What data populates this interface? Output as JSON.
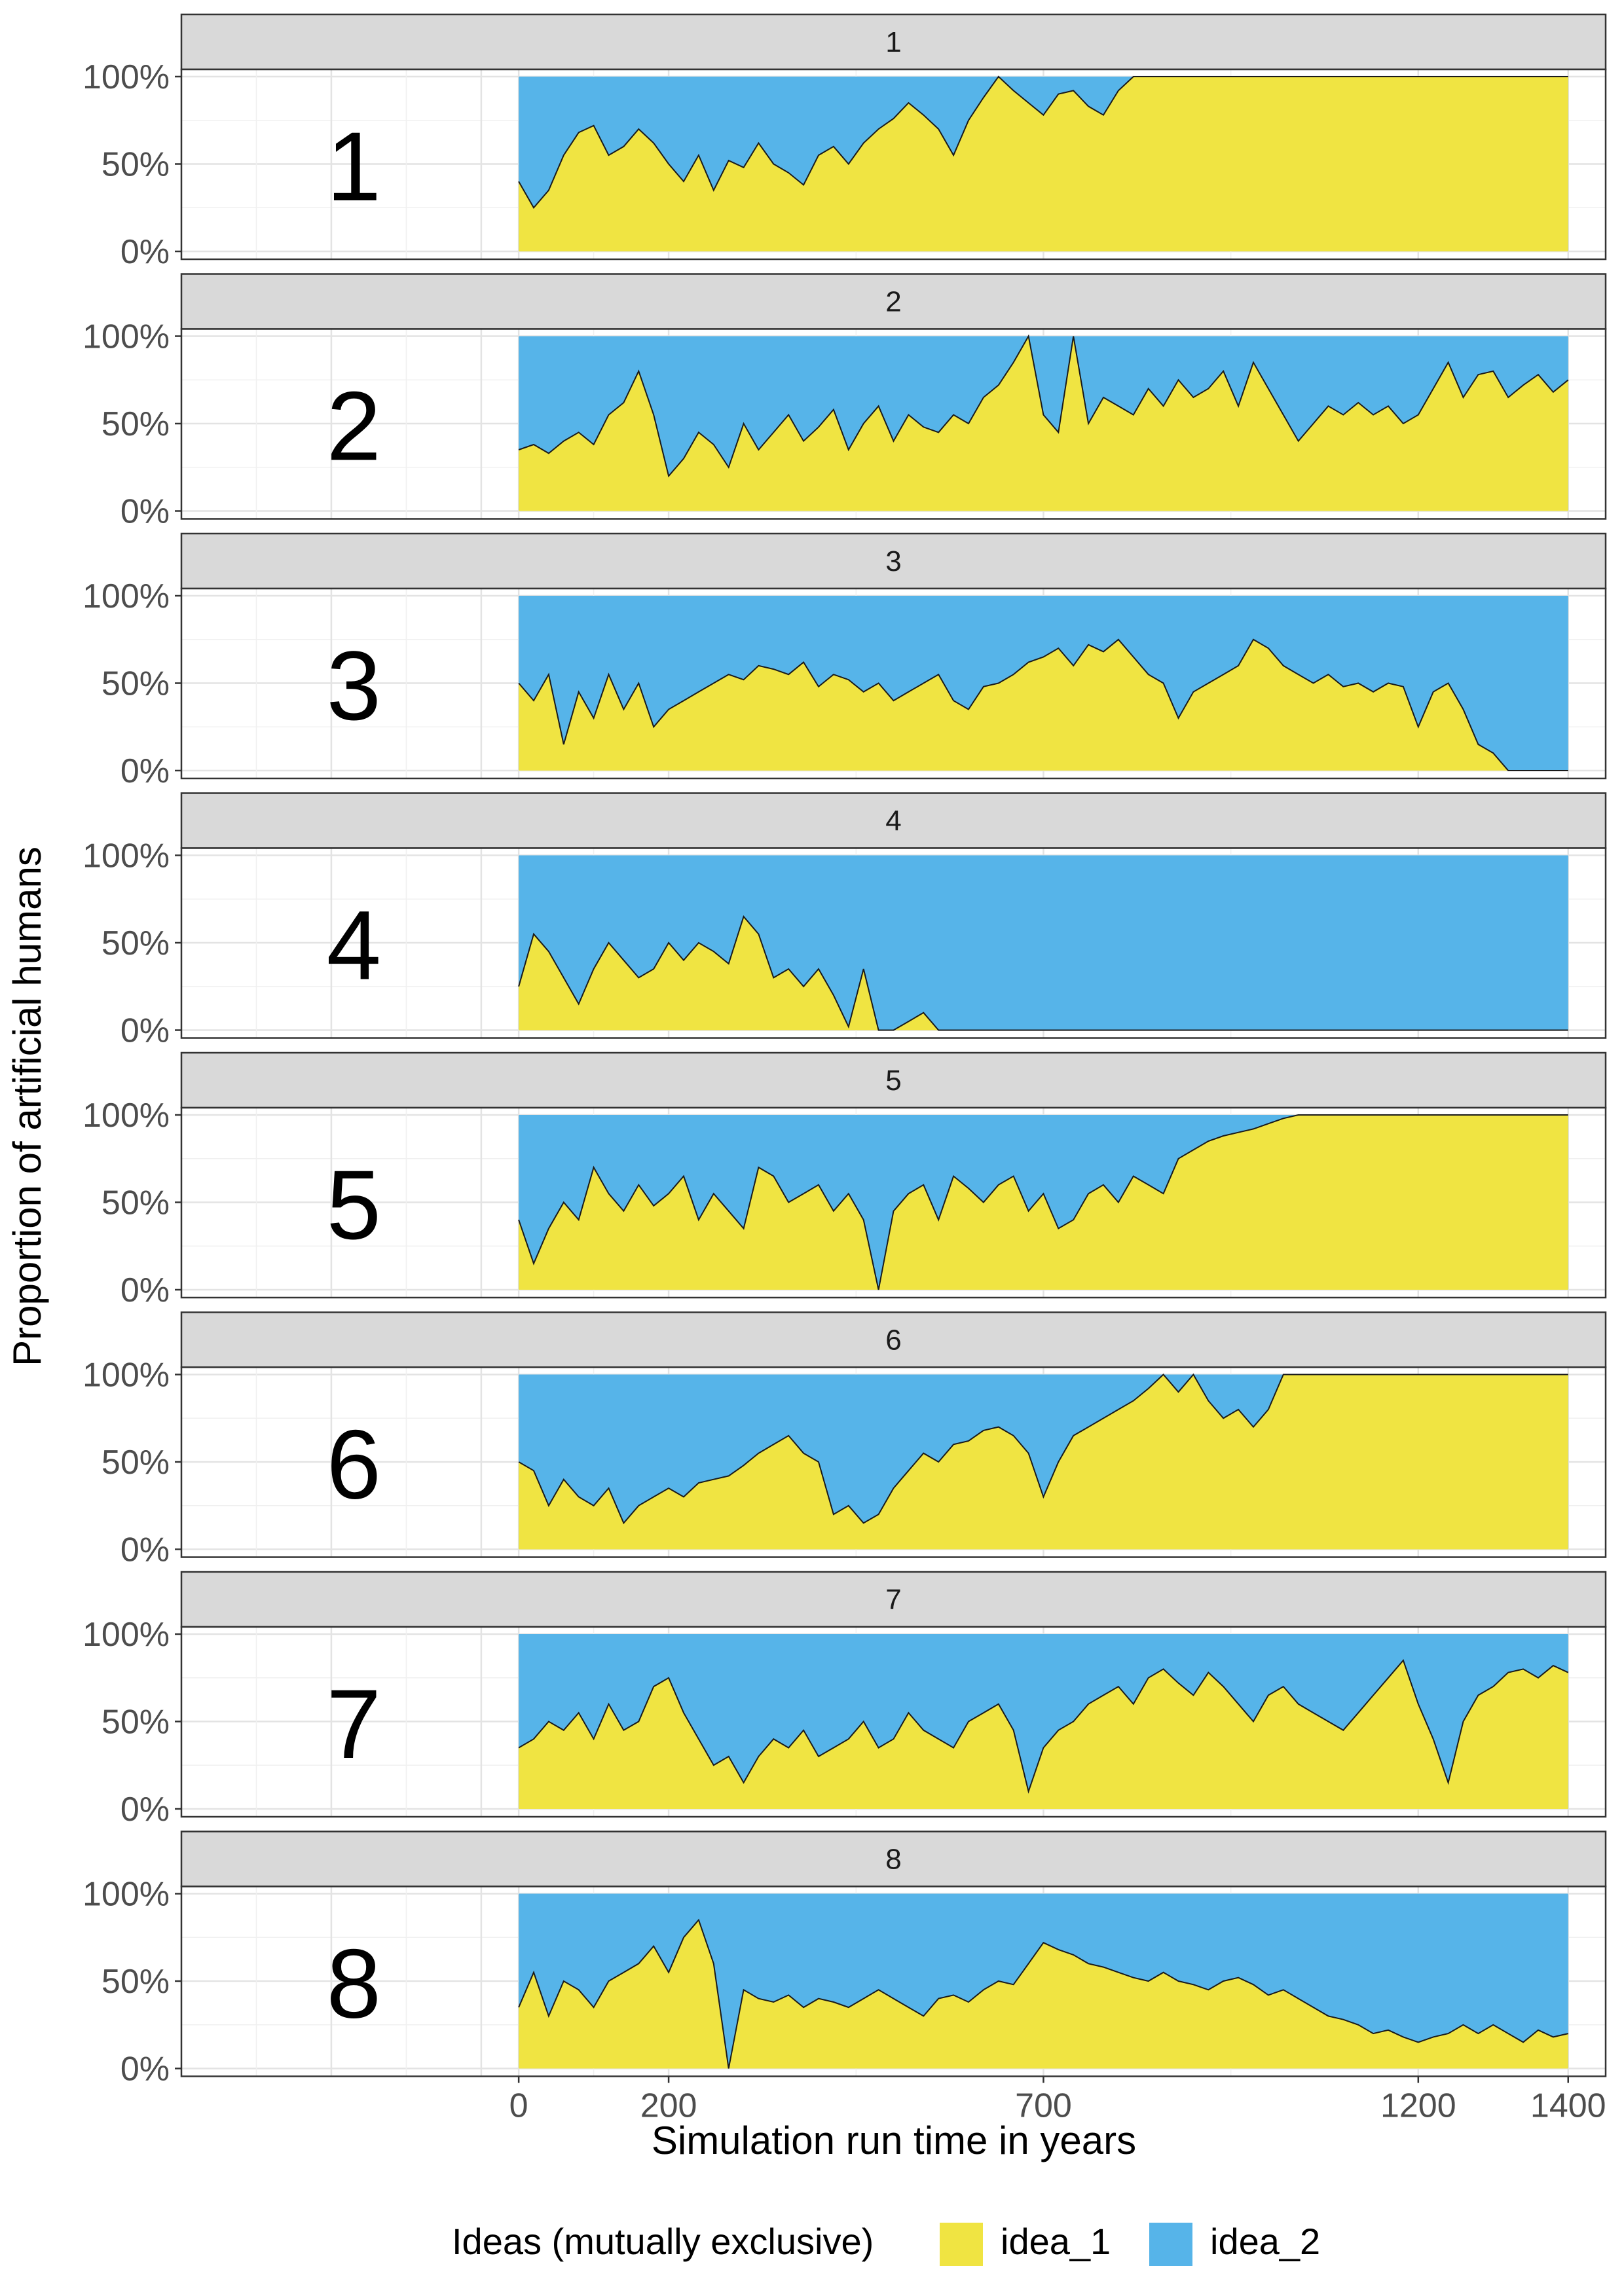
{
  "chart_data": {
    "type": "area",
    "stacked": true,
    "facet_by": "run",
    "xlabel": "Simulation run time in years",
    "ylabel": "Proportion of artificial humans",
    "xlim": [
      -450,
      1450
    ],
    "ylim": [
      0,
      1
    ],
    "x_ticks": [
      0,
      200,
      700,
      1200,
      1400
    ],
    "y_ticks": [
      "0%",
      "50%",
      "100%"
    ],
    "grid": true,
    "legend": {
      "title": "Ideas (mutually exclusive)",
      "position": "bottom",
      "items": [
        {
          "label": "idea_1",
          "color": "#F0E442"
        },
        {
          "label": "idea_2",
          "color": "#56B4E9"
        }
      ]
    },
    "series_names": [
      "idea_1",
      "idea_2"
    ],
    "x": [
      0,
      20,
      40,
      60,
      80,
      100,
      120,
      140,
      160,
      180,
      200,
      220,
      240,
      260,
      280,
      300,
      320,
      340,
      360,
      380,
      400,
      420,
      440,
      460,
      480,
      500,
      520,
      540,
      560,
      580,
      600,
      620,
      640,
      660,
      680,
      700,
      720,
      740,
      760,
      780,
      800,
      820,
      840,
      860,
      880,
      900,
      920,
      940,
      960,
      980,
      1000,
      1020,
      1040,
      1060,
      1080,
      1100,
      1120,
      1140,
      1160,
      1180,
      1200,
      1220,
      1240,
      1260,
      1280,
      1300,
      1320,
      1340,
      1360,
      1380,
      1400
    ],
    "panels": [
      {
        "strip": "1",
        "label": "1",
        "idea_1": [
          0.4,
          0.25,
          0.35,
          0.55,
          0.68,
          0.72,
          0.55,
          0.6,
          0.7,
          0.62,
          0.5,
          0.4,
          0.55,
          0.35,
          0.52,
          0.48,
          0.62,
          0.5,
          0.45,
          0.38,
          0.55,
          0.6,
          0.5,
          0.62,
          0.7,
          0.76,
          0.85,
          0.78,
          0.7,
          0.55,
          0.75,
          0.88,
          1.0,
          0.92,
          0.85,
          0.78,
          0.9,
          0.92,
          0.83,
          0.78,
          0.92,
          1.0,
          1.0,
          1.0,
          1.0,
          1.0,
          1.0,
          1.0,
          1.0,
          1.0,
          1.0,
          1.0,
          1.0,
          1.0,
          1.0,
          1.0,
          1.0,
          1.0,
          1.0,
          1.0,
          1.0,
          1.0,
          1.0,
          1.0,
          1.0,
          1.0,
          1.0,
          1.0,
          1.0,
          1.0,
          1.0
        ]
      },
      {
        "strip": "2",
        "label": "2",
        "idea_1": [
          0.35,
          0.38,
          0.33,
          0.4,
          0.45,
          0.38,
          0.55,
          0.62,
          0.8,
          0.55,
          0.2,
          0.3,
          0.45,
          0.38,
          0.25,
          0.5,
          0.35,
          0.45,
          0.55,
          0.4,
          0.48,
          0.58,
          0.35,
          0.5,
          0.6,
          0.4,
          0.55,
          0.48,
          0.45,
          0.55,
          0.5,
          0.65,
          0.72,
          0.85,
          1.0,
          0.55,
          0.45,
          1.0,
          0.5,
          0.65,
          0.6,
          0.55,
          0.7,
          0.6,
          0.75,
          0.65,
          0.7,
          0.8,
          0.6,
          0.85,
          0.7,
          0.55,
          0.4,
          0.5,
          0.6,
          0.55,
          0.62,
          0.55,
          0.6,
          0.5,
          0.55,
          0.7,
          0.85,
          0.65,
          0.78,
          0.8,
          0.65,
          0.72,
          0.78,
          0.68,
          0.75
        ]
      },
      {
        "strip": "3",
        "label": "3",
        "idea_1": [
          0.5,
          0.4,
          0.55,
          0.15,
          0.45,
          0.3,
          0.55,
          0.35,
          0.5,
          0.25,
          0.35,
          0.4,
          0.45,
          0.5,
          0.55,
          0.52,
          0.6,
          0.58,
          0.55,
          0.62,
          0.48,
          0.55,
          0.52,
          0.45,
          0.5,
          0.4,
          0.45,
          0.5,
          0.55,
          0.4,
          0.35,
          0.48,
          0.5,
          0.55,
          0.62,
          0.65,
          0.7,
          0.6,
          0.72,
          0.68,
          0.75,
          0.65,
          0.55,
          0.5,
          0.3,
          0.45,
          0.5,
          0.55,
          0.6,
          0.75,
          0.7,
          0.6,
          0.55,
          0.5,
          0.55,
          0.48,
          0.5,
          0.45,
          0.5,
          0.48,
          0.25,
          0.45,
          0.5,
          0.35,
          0.15,
          0.1,
          0.0,
          0.0,
          0.0,
          0.0,
          0.0
        ]
      },
      {
        "strip": "4",
        "label": "4",
        "idea_1": [
          0.25,
          0.55,
          0.45,
          0.3,
          0.15,
          0.35,
          0.5,
          0.4,
          0.3,
          0.35,
          0.5,
          0.4,
          0.5,
          0.45,
          0.38,
          0.65,
          0.55,
          0.3,
          0.35,
          0.25,
          0.35,
          0.2,
          0.02,
          0.35,
          0.0,
          0.0,
          0.05,
          0.1,
          0.0,
          0.0,
          0.0,
          0.0,
          0.0,
          0.0,
          0.0,
          0.0,
          0.0,
          0.0,
          0.0,
          0.0,
          0.0,
          0.0,
          0.0,
          0.0,
          0.0,
          0.0,
          0.0,
          0.0,
          0.0,
          0.0,
          0.0,
          0.0,
          0.0,
          0.0,
          0.0,
          0.0,
          0.0,
          0.0,
          0.0,
          0.0,
          0.0,
          0.0,
          0.0,
          0.0,
          0.0,
          0.0,
          0.0,
          0.0,
          0.0,
          0.0,
          0.0
        ]
      },
      {
        "strip": "5",
        "label": "5",
        "idea_1": [
          0.4,
          0.15,
          0.35,
          0.5,
          0.4,
          0.7,
          0.55,
          0.45,
          0.6,
          0.48,
          0.55,
          0.65,
          0.4,
          0.55,
          0.45,
          0.35,
          0.7,
          0.65,
          0.5,
          0.55,
          0.6,
          0.45,
          0.55,
          0.4,
          0.0,
          0.45,
          0.55,
          0.6,
          0.4,
          0.65,
          0.58,
          0.5,
          0.6,
          0.65,
          0.45,
          0.55,
          0.35,
          0.4,
          0.55,
          0.6,
          0.5,
          0.65,
          0.6,
          0.55,
          0.75,
          0.8,
          0.85,
          0.88,
          0.9,
          0.92,
          0.95,
          0.98,
          1.0,
          1.0,
          1.0,
          1.0,
          1.0,
          1.0,
          1.0,
          1.0,
          1.0,
          1.0,
          1.0,
          1.0,
          1.0,
          1.0,
          1.0,
          1.0,
          1.0,
          1.0,
          1.0
        ]
      },
      {
        "strip": "6",
        "label": "6",
        "idea_1": [
          0.5,
          0.45,
          0.25,
          0.4,
          0.3,
          0.25,
          0.35,
          0.15,
          0.25,
          0.3,
          0.35,
          0.3,
          0.38,
          0.4,
          0.42,
          0.48,
          0.55,
          0.6,
          0.65,
          0.55,
          0.5,
          0.2,
          0.25,
          0.15,
          0.2,
          0.35,
          0.45,
          0.55,
          0.5,
          0.6,
          0.62,
          0.68,
          0.7,
          0.65,
          0.55,
          0.3,
          0.5,
          0.65,
          0.7,
          0.75,
          0.8,
          0.85,
          0.92,
          1.0,
          0.9,
          1.0,
          0.85,
          0.75,
          0.8,
          0.7,
          0.8,
          1.0,
          1.0,
          1.0,
          1.0,
          1.0,
          1.0,
          1.0,
          1.0,
          1.0,
          1.0,
          1.0,
          1.0,
          1.0,
          1.0,
          1.0,
          1.0,
          1.0,
          1.0,
          1.0,
          1.0
        ]
      },
      {
        "strip": "7",
        "label": "7",
        "idea_1": [
          0.35,
          0.4,
          0.5,
          0.45,
          0.55,
          0.4,
          0.6,
          0.45,
          0.5,
          0.7,
          0.75,
          0.55,
          0.4,
          0.25,
          0.3,
          0.15,
          0.3,
          0.4,
          0.35,
          0.45,
          0.3,
          0.35,
          0.4,
          0.5,
          0.35,
          0.4,
          0.55,
          0.45,
          0.4,
          0.35,
          0.5,
          0.55,
          0.6,
          0.45,
          0.1,
          0.35,
          0.45,
          0.5,
          0.6,
          0.65,
          0.7,
          0.6,
          0.75,
          0.8,
          0.72,
          0.65,
          0.78,
          0.7,
          0.6,
          0.5,
          0.65,
          0.7,
          0.6,
          0.55,
          0.5,
          0.45,
          0.55,
          0.65,
          0.75,
          0.85,
          0.6,
          0.4,
          0.15,
          0.5,
          0.65,
          0.7,
          0.78,
          0.8,
          0.75,
          0.82,
          0.78
        ]
      },
      {
        "strip": "8",
        "label": "8",
        "idea_1": [
          0.35,
          0.55,
          0.3,
          0.5,
          0.45,
          0.35,
          0.5,
          0.55,
          0.6,
          0.7,
          0.55,
          0.75,
          0.85,
          0.6,
          0.0,
          0.45,
          0.4,
          0.38,
          0.42,
          0.35,
          0.4,
          0.38,
          0.35,
          0.4,
          0.45,
          0.4,
          0.35,
          0.3,
          0.4,
          0.42,
          0.38,
          0.45,
          0.5,
          0.48,
          0.6,
          0.72,
          0.68,
          0.65,
          0.6,
          0.58,
          0.55,
          0.52,
          0.5,
          0.55,
          0.5,
          0.48,
          0.45,
          0.5,
          0.52,
          0.48,
          0.42,
          0.45,
          0.4,
          0.35,
          0.3,
          0.28,
          0.25,
          0.2,
          0.22,
          0.18,
          0.15,
          0.18,
          0.2,
          0.25,
          0.2,
          0.25,
          0.2,
          0.15,
          0.22,
          0.18,
          0.2
        ]
      }
    ]
  }
}
